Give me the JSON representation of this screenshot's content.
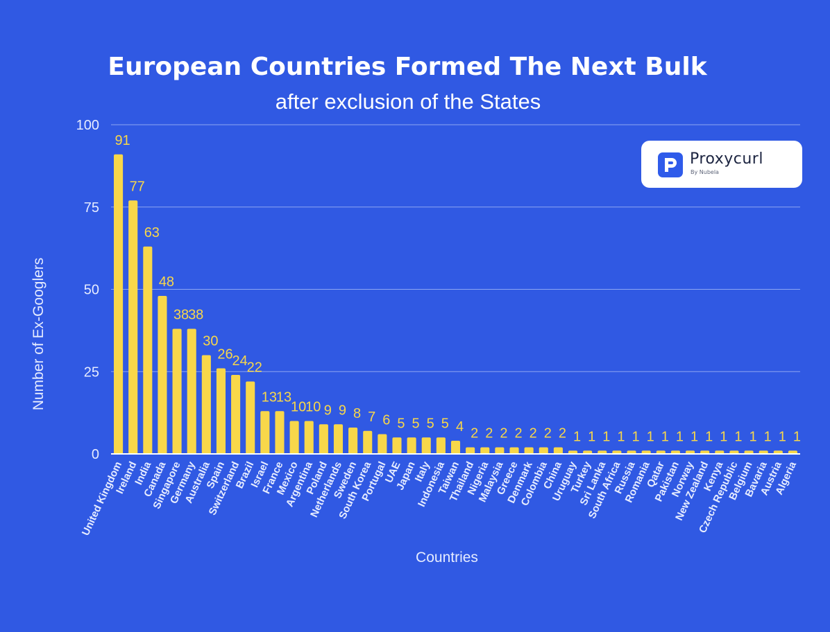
{
  "chart_data": {
    "type": "bar",
    "title": "European Countries Formed The Next Bulk",
    "subtitle": "after exclusion of the States",
    "xlabel": "Countries",
    "ylabel": "Number of Ex-Googlers",
    "ylim": [
      0,
      100
    ],
    "yticks": [
      "0",
      "25",
      "50",
      "75",
      "100"
    ],
    "grid": true,
    "categories": [
      "United Kingdom",
      "Ireland",
      "India",
      "Canada",
      "Singapore",
      "Germany",
      "Australia",
      "Spain",
      "Switzerland",
      "Brazil",
      "Israel",
      "France",
      "Mexico",
      "Argentina",
      "Poland",
      "Netherlands",
      "Sweden",
      "South Korea",
      "Portugal",
      "UAE",
      "Japan",
      "Italy",
      "Indonesia",
      "Taiwan",
      "Thailand",
      "Nigeria",
      "Malaysia",
      "Greece",
      "Denmark",
      "Colombia",
      "China",
      "Uruguay",
      "Turkey",
      "Sri Lanka",
      "South Africa",
      "Russia",
      "Romania",
      "Qatar",
      "Pakistan",
      "Norway",
      "New Zealand",
      "Kenya",
      "Czech Republic",
      "Belgium",
      "Bavaria",
      "Austria",
      "Algeria"
    ],
    "values": [
      91,
      77,
      63,
      48,
      38,
      38,
      30,
      26,
      24,
      22,
      13,
      13,
      10,
      10,
      9,
      9,
      8,
      7,
      6,
      5,
      5,
      5,
      5,
      4,
      2,
      2,
      2,
      2,
      2,
      2,
      2,
      1,
      1,
      1,
      1,
      1,
      1,
      1,
      1,
      1,
      1,
      1,
      1,
      1,
      1,
      1,
      1
    ],
    "colors": {
      "background": "#3059e3",
      "bar": "#f8d74a",
      "gridline": "#8ea6f2",
      "axis": "#ffffff"
    }
  },
  "logo": {
    "name": "Proxycurl",
    "tagline": "By Nubela"
  }
}
